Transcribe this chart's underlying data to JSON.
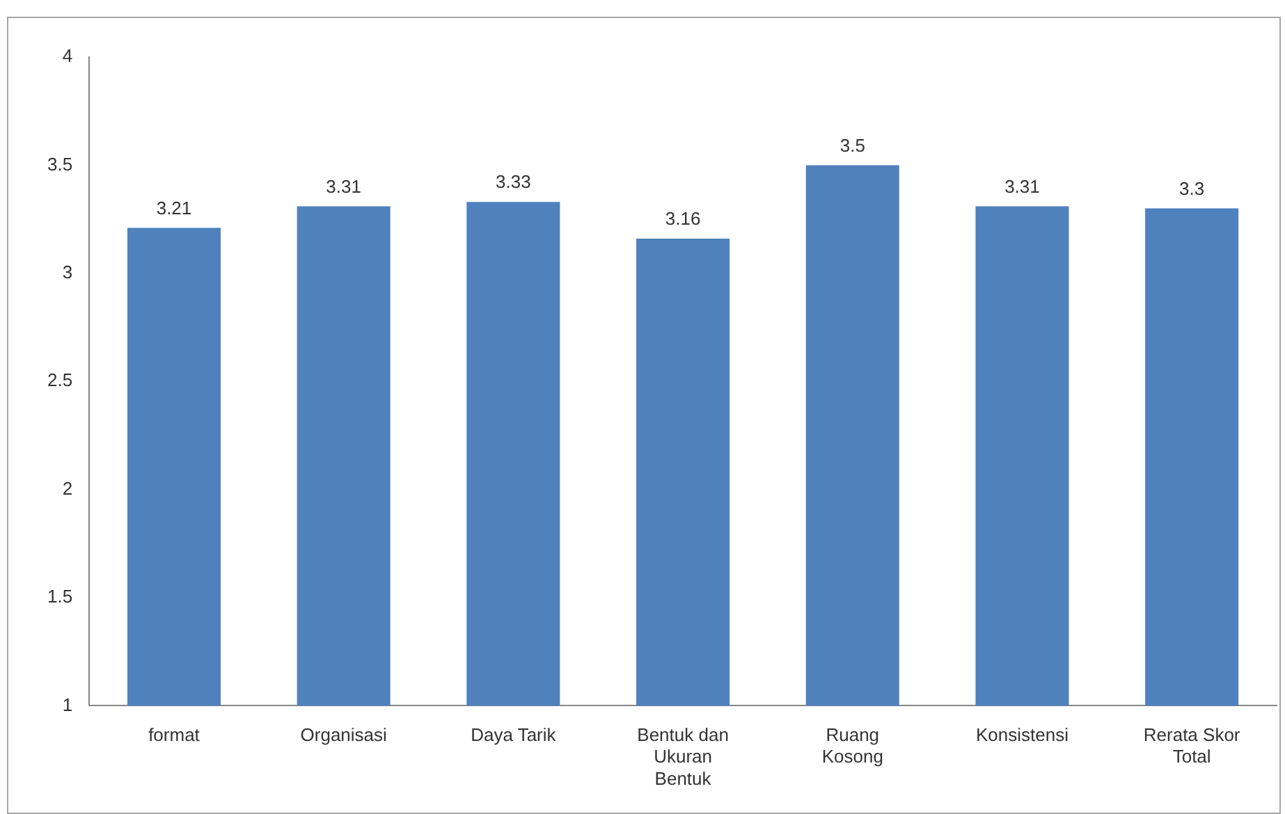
{
  "chart_data": {
    "type": "bar",
    "categories": [
      "format",
      "Organisasi",
      "Daya Tarik",
      "Bentuk dan Ukuran Bentuk",
      "Ruang Kosong",
      "Konsistensi",
      "Rerata Skor Total"
    ],
    "values": [
      3.21,
      3.31,
      3.33,
      3.16,
      3.5,
      3.31,
      3.3
    ],
    "color": "#4f81bd",
    "ylim": [
      1,
      4
    ],
    "yticks": [
      1,
      1.5,
      2,
      2.5,
      3,
      3.5,
      4
    ],
    "grid": false,
    "legend": false,
    "data_labels": true
  }
}
